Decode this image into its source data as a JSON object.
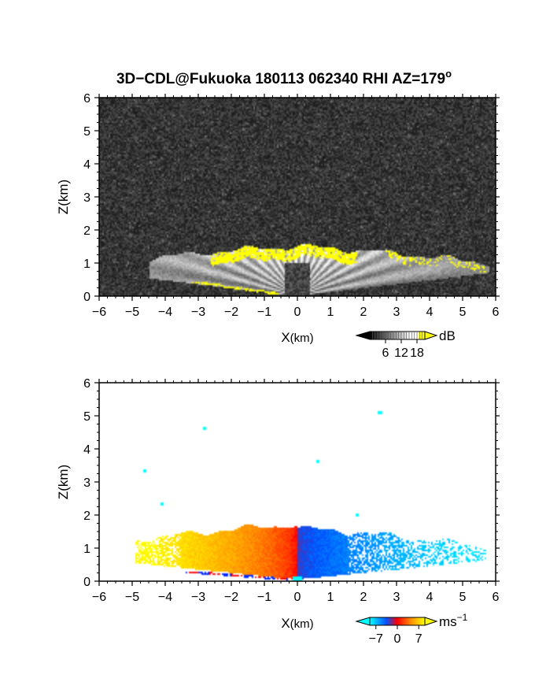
{
  "figure": {
    "title_main": "3D−CDL@Fukuoka 180113 062340 RHI AZ=179",
    "title_sup": "o"
  },
  "chart_data": [
    {
      "type": "heatmap",
      "panel": "top",
      "quantity": "reflectivity",
      "xlabel_main": "X",
      "xlabel_unit": "(km)",
      "ylabel": "Z(km)",
      "xlim": [
        -6,
        6
      ],
      "ylim": [
        0,
        6
      ],
      "x_ticks": [
        "−6",
        "−5",
        "−4",
        "−3",
        "−2",
        "−1",
        "0",
        "1",
        "2",
        "3",
        "4",
        "5",
        "6"
      ],
      "y_ticks": [
        "0",
        "1",
        "2",
        "3",
        "4",
        "5",
        "6"
      ],
      "colorbar": {
        "unit": "dB",
        "range": [
          0,
          21
        ],
        "ticks": [
          "6",
          "12",
          "18"
        ],
        "tick_values": [
          6,
          12,
          18
        ],
        "colors": [
          "#000000",
          "#ffffff",
          "#ffff00"
        ]
      },
      "echo": {
        "top_height_km": 1.5,
        "x_extent_km": [
          -4.5,
          5.8
        ],
        "high_echo_color": "#ffff00"
      },
      "background_color": "#2b2b2b"
    },
    {
      "type": "heatmap",
      "panel": "bottom",
      "quantity": "doppler velocity",
      "xlabel_main": "X",
      "xlabel_unit": "(km)",
      "ylabel": "Z(km)",
      "xlim": [
        -6,
        6
      ],
      "ylim": [
        0,
        6
      ],
      "x_ticks": [
        "−6",
        "−5",
        "−4",
        "−3",
        "−2",
        "−1",
        "0",
        "1",
        "2",
        "3",
        "4",
        "5",
        "6"
      ],
      "y_ticks": [
        "0",
        "1",
        "2",
        "3",
        "4",
        "5",
        "6"
      ],
      "colorbar": {
        "unit": "ms",
        "unit_sup": "−1",
        "range": [
          -9,
          9
        ],
        "ticks": [
          "−7",
          "0",
          "7"
        ],
        "tick_values": [
          -7,
          0,
          7
        ],
        "colors": [
          "#00ffff",
          "#0040ff",
          "#ff0000",
          "#ff8000",
          "#ffff00"
        ]
      },
      "echo": {
        "top_height_km": 1.7,
        "x_extent_km": [
          -4.9,
          5.7
        ],
        "sign_change_x_km": 0
      },
      "background_color": "#ffffff"
    }
  ]
}
